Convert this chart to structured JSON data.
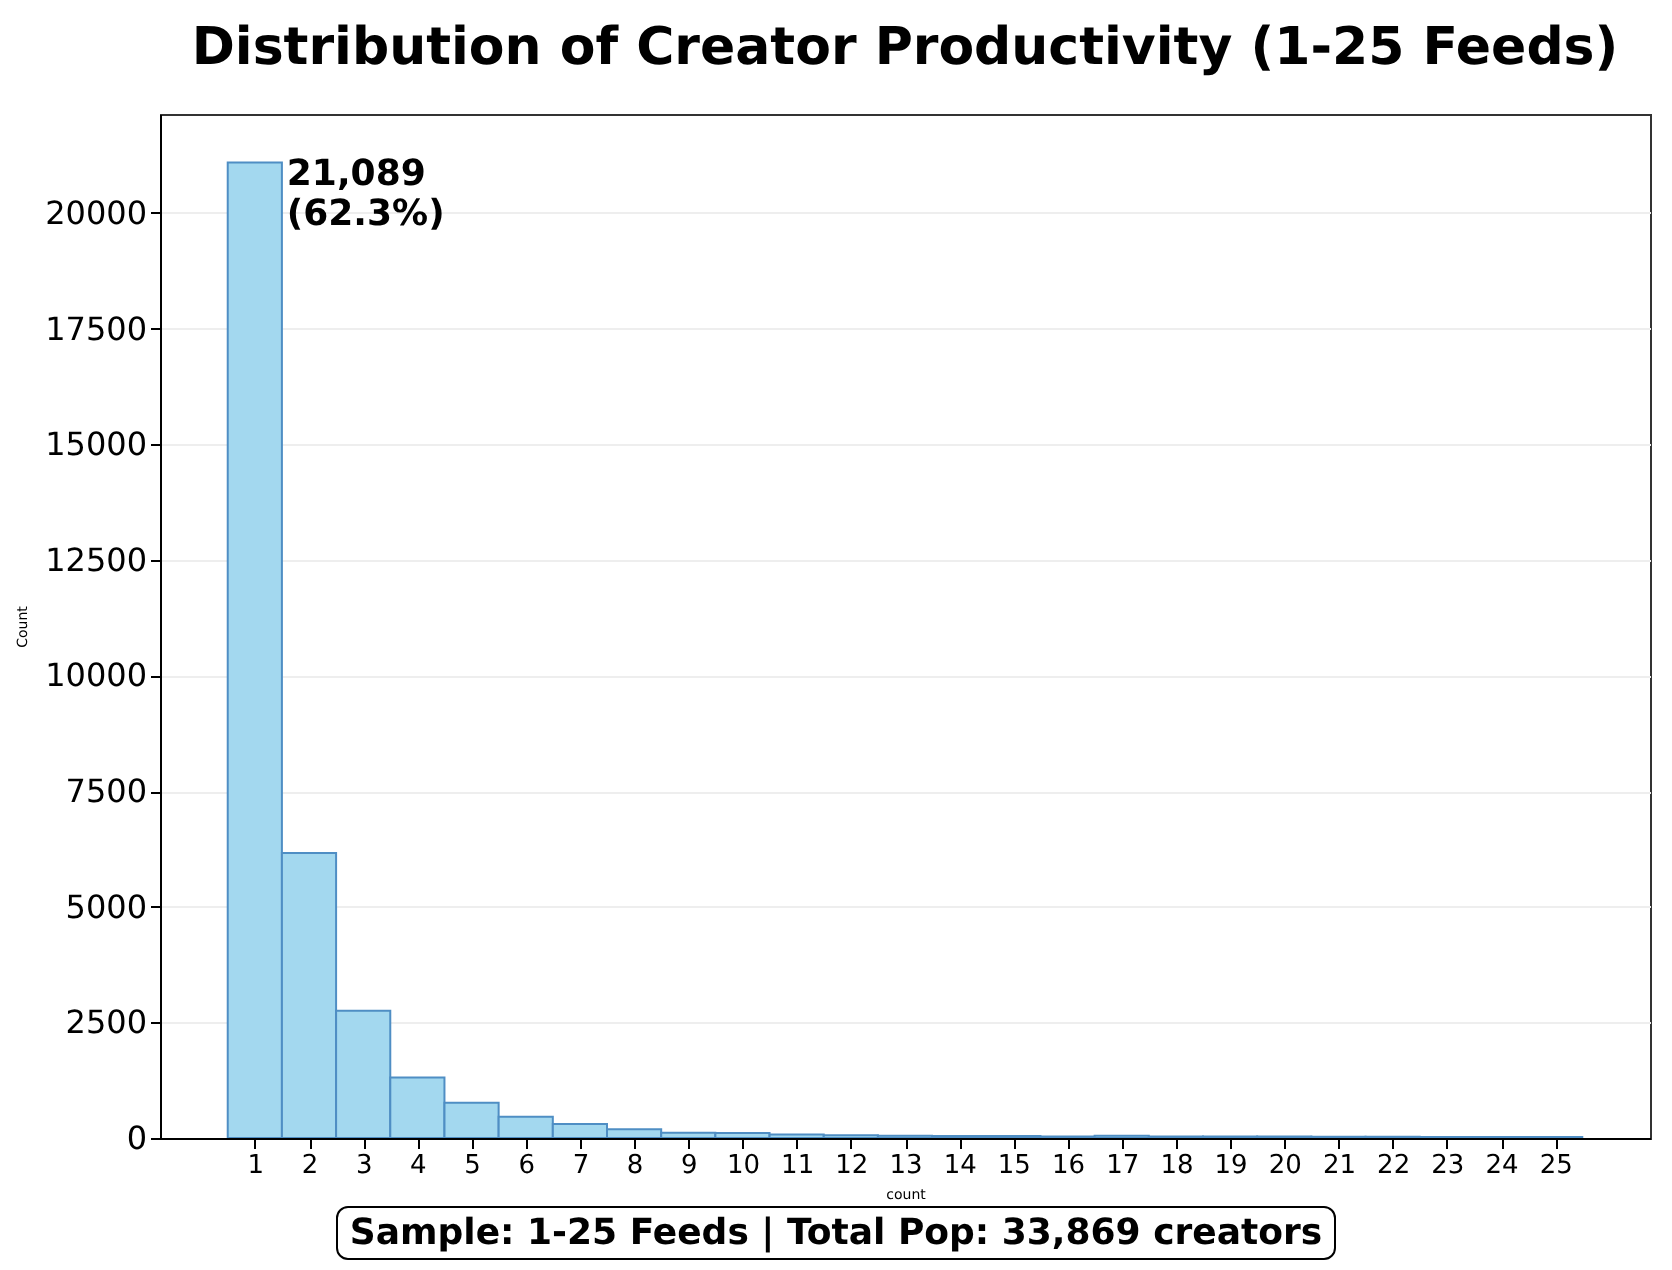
{
  "chart_data": {
    "type": "histogram",
    "title": "Distribution of Creator Productivity (1-25 Feeds)",
    "xlabel": "count",
    "ylabel": "Count",
    "bins": [
      0.5,
      1.5,
      2.5,
      3.5,
      4.5,
      5.5,
      6.5,
      7.5,
      8.5,
      9.5,
      10.5,
      11.5,
      12.5,
      13.5,
      14.5,
      15.5,
      16.5,
      17.5,
      18.5,
      19.5,
      20.5,
      21.5,
      22.5,
      23.5,
      24.5,
      25.5
    ],
    "values": [
      21089,
      6160,
      2750,
      1310,
      760,
      460,
      300,
      190,
      115,
      110,
      75,
      60,
      50,
      45,
      45,
      30,
      50,
      35,
      35,
      35,
      25,
      25,
      20,
      20,
      20
    ],
    "color": "#9ed6ee",
    "xlim": [
      -0.75,
      26.75
    ],
    "xticks": [
      1,
      2,
      3,
      4,
      5,
      6,
      7,
      8,
      9,
      10,
      11,
      12,
      13,
      14,
      15,
      16,
      17,
      18,
      19,
      20,
      21,
      22,
      23,
      24,
      25
    ],
    "ylim": [
      0,
      22140
    ],
    "yticks": [
      0,
      {
        "value": 2500,
        "label": "2500"
      },
      {
        "value": 5000,
        "label": "5000"
      },
      {
        "value": 7500,
        "label": "7500"
      },
      {
        "value": 10000,
        "label": "10000"
      },
      {
        "value": 12500,
        "label": "12500"
      },
      {
        "value": 15000,
        "label": "15000"
      },
      {
        "value": 17500,
        "label": "17500"
      },
      {
        "value": 20000,
        "label": "20000"
      }
    ],
    "grid": "y",
    "annotations": [
      {
        "text": "21,089\n(62.3%)",
        "x": 1,
        "y": 21089
      },
      "Sample: 1-25 Feeds | Total Pop: 33,869 creators"
    ]
  }
}
